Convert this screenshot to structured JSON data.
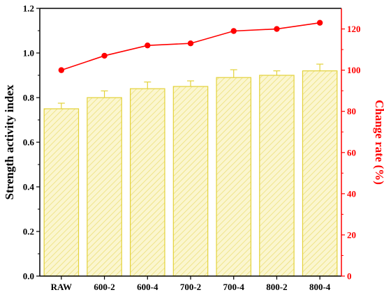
{
  "chart_data": {
    "type": "bar",
    "categories": [
      "RAW",
      "600-2",
      "600-4",
      "700-2",
      "700-4",
      "800-2",
      "800-4"
    ],
    "series": [
      {
        "axis": "left",
        "chart_type": "bar",
        "values": [
          0.75,
          0.8,
          0.84,
          0.85,
          0.89,
          0.9,
          0.92
        ],
        "error": [
          0.025,
          0.03,
          0.03,
          0.025,
          0.035,
          0.02,
          0.03
        ]
      },
      {
        "axis": "right",
        "chart_type": "line",
        "values": [
          100,
          107,
          112,
          113,
          119,
          120,
          123
        ]
      }
    ],
    "ylabel": "Strength activity index",
    "ylabel_right": "Change rate (%)",
    "xlabel": "",
    "ylim": [
      0,
      1.2
    ],
    "ylim_right": [
      0,
      130
    ],
    "yticks": [
      "0.0",
      "0.2",
      "0.4",
      "0.6",
      "0.8",
      "1.0",
      "1.2"
    ],
    "yticks_right": [
      "0",
      "20",
      "40",
      "60",
      "80",
      "100",
      "120"
    ],
    "grid": false,
    "colors": {
      "bar_stroke": "#e3d23a",
      "bar_fill": "#fbf6cf",
      "bar_hatch": "#ece07a",
      "line": "#ff0000",
      "axis_left": "#000000",
      "axis_right": "#ff0000"
    }
  }
}
